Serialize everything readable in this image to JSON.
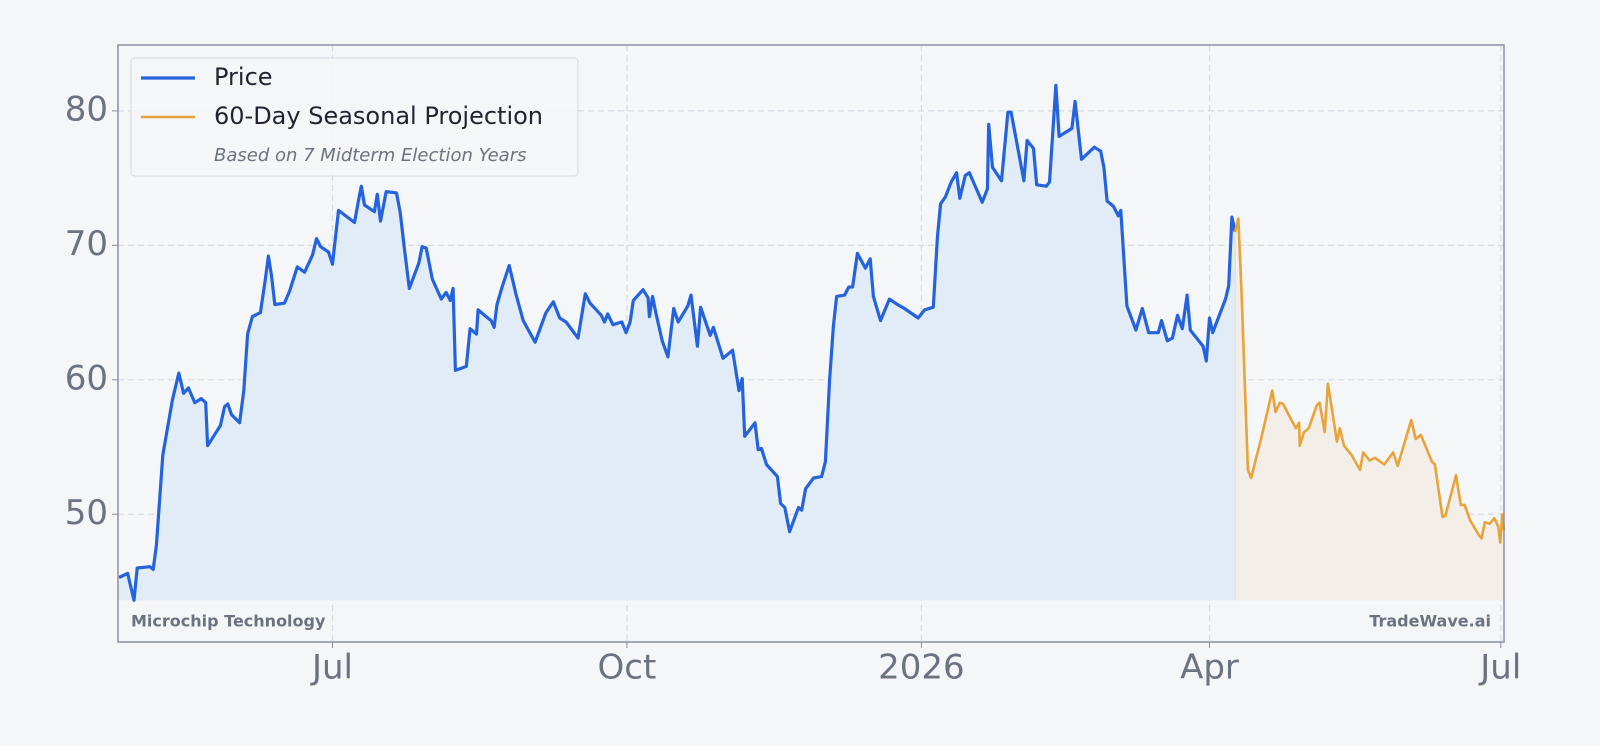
{
  "chart_data": {
    "type": "line",
    "xlim": [
      -67,
      366
    ],
    "ylim": [
      40.5,
      84.9
    ],
    "xticks": [
      {
        "value": 0,
        "label": "Jul"
      },
      {
        "value": 92,
        "label": "Oct"
      },
      {
        "value": 184,
        "label": "2026"
      },
      {
        "value": 274,
        "label": "Apr"
      },
      {
        "value": 365,
        "label": "Jul"
      }
    ],
    "yticks": [
      50,
      60,
      70,
      80
    ],
    "grid": true,
    "legend": "upper left",
    "legend_note": "Based on 7 Midterm Election Years",
    "annotations": [
      "Microchip Technology",
      "TradeWave.ai"
    ],
    "series": [
      {
        "name": "Price",
        "color": "#2563de",
        "fill": "#e1ecf7",
        "x": [
          -66.7,
          -64,
          -62,
          -61,
          -57,
          -56,
          -55,
          -53,
          -50,
          -48,
          -46.5,
          -45,
          -43,
          -41,
          -39.6,
          -39,
          -35,
          -33.7,
          -32.7,
          -31.5,
          -29,
          -27.7,
          -26.5,
          -25,
          -22.5,
          -21,
          -20,
          -19,
          -18,
          -15,
          -13.4,
          -11,
          -8.7,
          -6.2,
          -5,
          -3.7,
          -1.2,
          0,
          1.9,
          6.9,
          8.1,
          9,
          10,
          13.1,
          14,
          15,
          16.8,
          20,
          21.2,
          22.5,
          24,
          27,
          28,
          29.3,
          31.2,
          34,
          35.5,
          36.8,
          37.7,
          38.4,
          41.8,
          43,
          45,
          45.5,
          48,
          49.6,
          50.5,
          51.4,
          53,
          55.2,
          56.4,
          57.4,
          59.6,
          63.3,
          66.7,
          69,
          71,
          73,
          76.7,
          79,
          80.5,
          84,
          85,
          86,
          87.6,
          90.4,
          91.7,
          93,
          94,
          97,
          98.6,
          99,
          100,
          101,
          103,
          104.8,
          106.6,
          108,
          111,
          112,
          114,
          115,
          118,
          119,
          122,
          125,
          127,
          128,
          128.8,
          132,
          133,
          134,
          135.6,
          139,
          140,
          141.3,
          142.8,
          145.6,
          146.6,
          147.8,
          150.3,
          152.8,
          154,
          155.3,
          156.5,
          157.5,
          160,
          161.3,
          162.5,
          164,
          166.5,
          168,
          169,
          171.2,
          174,
          176.5,
          178.7,
          183,
          185,
          187.7,
          189,
          190,
          191.5,
          193.3,
          195,
          196,
          197.7,
          199,
          203,
          204.6,
          205,
          206.2,
          209,
          211,
          212,
          216,
          217,
          219,
          220,
          223,
          224,
          226,
          227,
          231,
          232,
          234,
          238,
          240,
          241,
          242,
          244,
          245.5,
          246.3,
          248.2,
          251,
          253,
          255,
          258,
          259,
          260.8,
          262.4,
          264,
          265.5,
          267,
          268,
          272,
          273,
          274,
          275,
          279,
          280,
          281,
          282
        ],
        "values": [
          45.3,
          45.6,
          43.6,
          46.0,
          46.1,
          45.9,
          47.7,
          54.4,
          58.5,
          60.5,
          59.0,
          59.4,
          58.3,
          58.6,
          58.3,
          55.1,
          56.6,
          58.0,
          58.2,
          57.4,
          56.8,
          59.2,
          63.4,
          64.7,
          65.0,
          67.4,
          69.2,
          67.7,
          65.6,
          65.7,
          66.6,
          68.4,
          68.0,
          69.3,
          70.5,
          69.9,
          69.5,
          68.6,
          72.6,
          71.7,
          73.3,
          74.4,
          73.0,
          72.5,
          73.8,
          71.8,
          74.0,
          73.9,
          72.4,
          69.7,
          66.8,
          68.7,
          69.9,
          69.8,
          67.5,
          66.0,
          66.5,
          65.9,
          66.8,
          60.7,
          61.0,
          63.8,
          63.4,
          65.2,
          64.7,
          64.4,
          63.9,
          65.6,
          66.9,
          68.5,
          67.3,
          66.3,
          64.4,
          62.8,
          65.0,
          65.8,
          64.6,
          64.3,
          63.1,
          66.4,
          65.7,
          64.8,
          64.3,
          64.9,
          64.1,
          64.3,
          63.5,
          64.3,
          65.9,
          66.7,
          66.1,
          64.7,
          66.2,
          65.0,
          62.9,
          61.7,
          65.3,
          64.3,
          65.5,
          66.3,
          62.5,
          65.4,
          63.3,
          63.9,
          61.6,
          62.2,
          59.2,
          60.1,
          55.8,
          56.8,
          54.8,
          54.9,
          53.7,
          52.8,
          50.8,
          50.5,
          48.7,
          50.5,
          50.3,
          51.9,
          52.7,
          52.8,
          53.9,
          60.0,
          64.0,
          66.2,
          66.3,
          66.9,
          66.9,
          69.4,
          68.3,
          69.0,
          66.2,
          64.4,
          66.0,
          65.6,
          65.3,
          64.6,
          65.2,
          65.4,
          70.6,
          73.1,
          73.6,
          74.7,
          75.4,
          73.5,
          75.2,
          75.4,
          73.2,
          74.2,
          79.0,
          75.8,
          74.8,
          79.9,
          79.9,
          74.8,
          77.8,
          77.2,
          74.5,
          74.4,
          74.7,
          81.9,
          78.1,
          78.7,
          80.7,
          76.4,
          77.3,
          77.0,
          75.8,
          73.3,
          72.9,
          72.2,
          72.6,
          65.5,
          63.7,
          65.3,
          63.5,
          63.5,
          64.4,
          62.9,
          63.1,
          64.8,
          63.8,
          66.3,
          63.7,
          62.5,
          61.4,
          64.6,
          63.5,
          66.0,
          67.0,
          72.1,
          71.0
        ]
      },
      {
        "name": "60-Day Seasonal Projection",
        "color": "#e8a33a",
        "fill": "#f3eee7",
        "x": [
          282,
          283,
          284,
          286,
          287,
          288.6,
          290,
          293.6,
          294.6,
          296,
          297,
          299.4,
          301,
          302,
          302.2,
          303.5,
          305,
          307.5,
          308.4,
          310,
          311,
          312.4,
          313.8,
          314.7,
          316,
          318.4,
          321,
          322,
          324,
          325.7,
          328.6,
          331.4,
          332.8,
          337,
          338.4,
          340,
          343.5,
          344.4,
          346.8,
          347.7,
          351,
          352.5,
          353.7,
          355.3,
          358,
          359,
          360,
          361.5,
          363,
          364.2,
          364.8,
          365.5,
          366
        ],
        "values": [
          71.0,
          72.0,
          66.6,
          53.3,
          52.7,
          54.2,
          55.5,
          59.2,
          57.6,
          58.3,
          58.2,
          57.1,
          56.4,
          56.8,
          55.1,
          56.1,
          56.4,
          58.1,
          58.3,
          56.1,
          59.7,
          57.6,
          55.4,
          56.4,
          55.1,
          54.4,
          53.3,
          54.6,
          54.0,
          54.2,
          53.7,
          54.6,
          53.6,
          57.0,
          55.6,
          55.9,
          53.9,
          53.7,
          49.8,
          49.9,
          52.9,
          50.7,
          50.7,
          49.6,
          48.5,
          48.2,
          49.4,
          49.3,
          49.7,
          49.1,
          47.9,
          50.0,
          48.8
        ]
      }
    ]
  }
}
